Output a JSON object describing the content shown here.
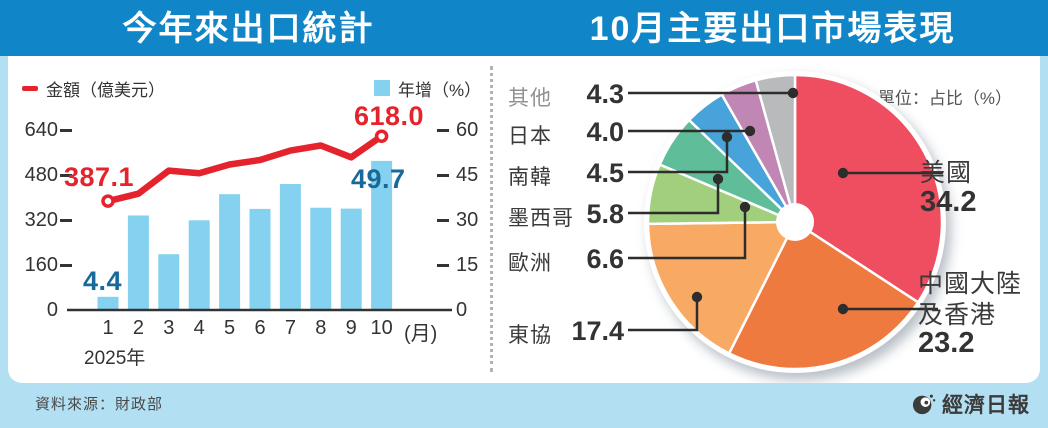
{
  "header": {
    "left_title": "今年來出口統計",
    "right_title": "10月主要出口市場表現"
  },
  "footer": {
    "source": "資料來源：財政部",
    "brand": "經濟日報"
  },
  "colors": {
    "header": "#1086c8",
    "bg": "#b2dff2",
    "bar": "#85d2f0",
    "line": "#e4232d",
    "growth": "#17699c",
    "text": "#333333",
    "muted": "#8f9193",
    "leader": "#2d2d2d"
  },
  "chart_data": [
    {
      "type": "bar+line",
      "title": "今年來出口統計",
      "x": [
        "1",
        "2",
        "3",
        "4",
        "5",
        "6",
        "7",
        "8",
        "9",
        "10"
      ],
      "x_suffix": "(月)",
      "x_axis_note": "2025年",
      "left_axis": {
        "label": "金額（億美元）",
        "ticks": [
          640,
          480,
          320,
          160,
          0
        ],
        "max": 640
      },
      "right_axis": {
        "label": "年增（%）",
        "ticks": [
          60,
          45,
          30,
          15,
          0
        ],
        "max": 60
      },
      "series": [
        {
          "name": "金額（億美元）",
          "type": "line",
          "axis": "left",
          "color": "#e4232d",
          "values": [
            387.1,
            413.5,
            495.6,
            486.4,
            517.3,
            533.3,
            566.9,
            584.9,
            542.8,
            618.0
          ],
          "labeled_points": {
            "first": "387.1",
            "last": "618.0"
          }
        },
        {
          "name": "年增（%）",
          "type": "bar",
          "axis": "right",
          "color": "#85d2f0",
          "values": [
            4.4,
            31.5,
            18.6,
            29.9,
            38.6,
            33.7,
            42.0,
            34.1,
            33.8,
            49.7
          ],
          "labeled_points": {
            "first": "4.4",
            "last": "49.7"
          }
        }
      ]
    },
    {
      "type": "pie",
      "title": "10月主要出口市場表現",
      "unit_note": "單位：占比（%）",
      "slices": [
        {
          "label": "美國",
          "value": 34.2,
          "value_label": "34.2",
          "color": "#ee4e60",
          "side": "right"
        },
        {
          "label": "中國大陸及香港",
          "label_lines": [
            "中國大陸",
            "及香港"
          ],
          "value": 23.2,
          "value_label": "23.2",
          "color": "#ee7a40",
          "side": "right"
        },
        {
          "label": "東協",
          "value": 17.4,
          "value_label": "17.4",
          "color": "#f8a963",
          "side": "left"
        },
        {
          "label": "歐洲",
          "value": 6.6,
          "value_label": "6.6",
          "color": "#a2cf7e",
          "side": "left"
        },
        {
          "label": "墨西哥",
          "value": 5.8,
          "value_label": "5.8",
          "color": "#5fbe99",
          "side": "left"
        },
        {
          "label": "南韓",
          "value": 4.5,
          "value_label": "4.5",
          "color": "#49a3db",
          "side": "left"
        },
        {
          "label": "日本",
          "value": 4.0,
          "value_label": "4.0",
          "color": "#c087b4",
          "side": "left"
        },
        {
          "label": "其他",
          "value": 4.3,
          "value_label": "4.3",
          "color": "#b9babc",
          "side": "left"
        }
      ]
    }
  ]
}
